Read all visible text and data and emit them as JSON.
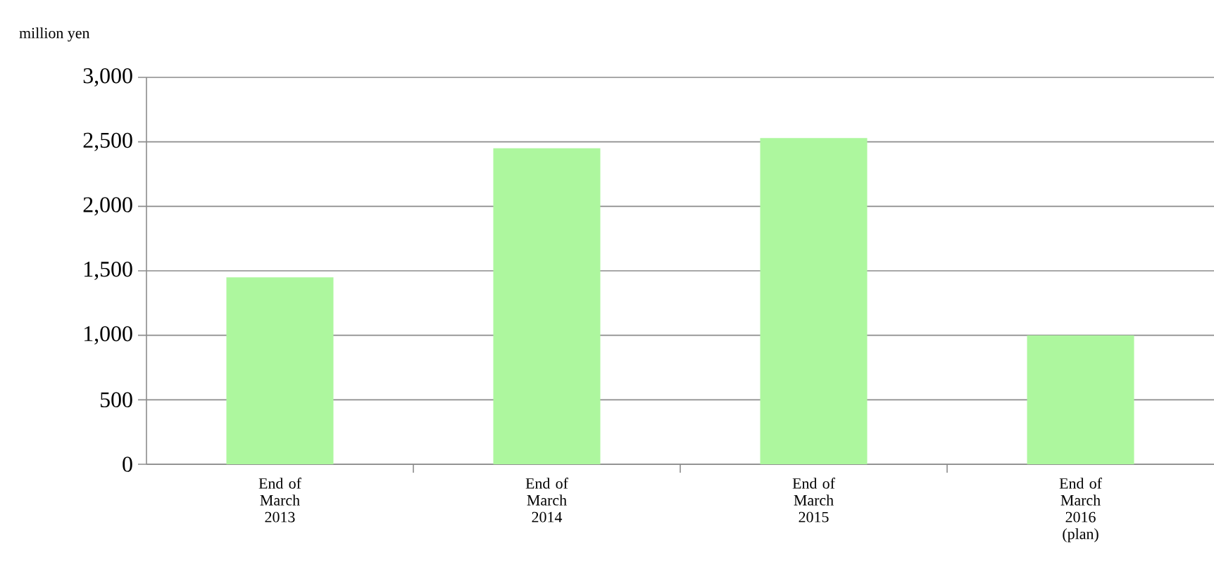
{
  "chart_data": {
    "type": "bar",
    "ylabel": "million yen",
    "categories": [
      "End of March 2013",
      "End of March 2014",
      "End of March 2015",
      "End of March 2016 (plan)"
    ],
    "values": [
      1450,
      2450,
      2530,
      1000
    ],
    "color": "#adf79e",
    "ylim": [
      0,
      3000
    ],
    "yticks": [
      0,
      {
        "value": 500,
        "label": "500"
      },
      {
        "value": 1000,
        "label": "1,000"
      },
      {
        "value": 1500,
        "label": "1,500"
      },
      {
        "value": 2000,
        "label": "2,000"
      },
      {
        "value": 2500,
        "label": "2,500"
      },
      {
        "value": 3000,
        "label": "3,000"
      }
    ],
    "grid": "y"
  }
}
